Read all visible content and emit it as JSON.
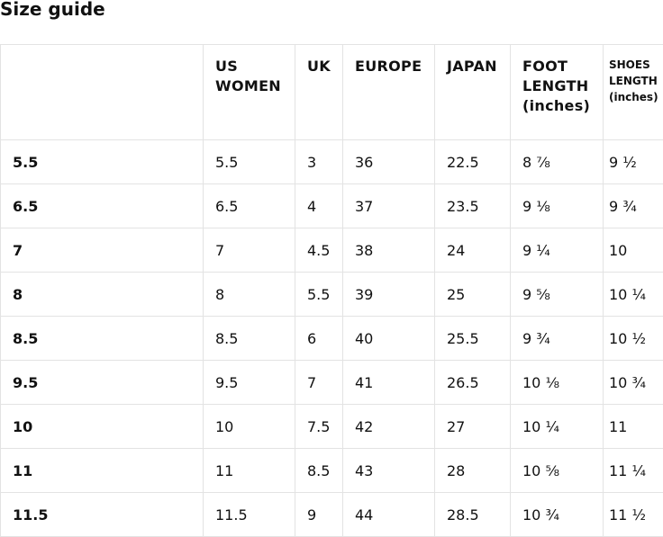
{
  "title": "Size guide",
  "table": {
    "headers": [
      "",
      "US WOMEN",
      "UK",
      "EUROPE",
      "JAPAN",
      "FOOT LENGTH (inches)",
      "SHOES LENGTH (inches)"
    ],
    "rows": [
      [
        "5.5",
        "5.5",
        "3",
        "36",
        "22.5",
        "8 ⅞",
        "9 ½"
      ],
      [
        "6.5",
        "6.5",
        "4",
        "37",
        "23.5",
        "9 ⅛",
        "9 ¾"
      ],
      [
        "7",
        "7",
        "4.5",
        "38",
        "24",
        "9 ¼",
        "10"
      ],
      [
        "8",
        "8",
        "5.5",
        "39",
        "25",
        "9 ⅝",
        "10 ¼"
      ],
      [
        "8.5",
        "8.5",
        "6",
        "40",
        "25.5",
        "9 ¾",
        "10 ½"
      ],
      [
        "9.5",
        "9.5",
        "7",
        "41",
        "26.5",
        "10 ⅛",
        "10 ¾"
      ],
      [
        "10",
        "10",
        "7.5",
        "42",
        "27",
        "10 ¼",
        "11"
      ],
      [
        "11",
        "11",
        "8.5",
        "43",
        "28",
        "10 ⅝",
        "11 ¼"
      ],
      [
        "11.5",
        "11.5",
        "9",
        "44",
        "28.5",
        "10 ¾",
        "11 ½"
      ]
    ]
  }
}
